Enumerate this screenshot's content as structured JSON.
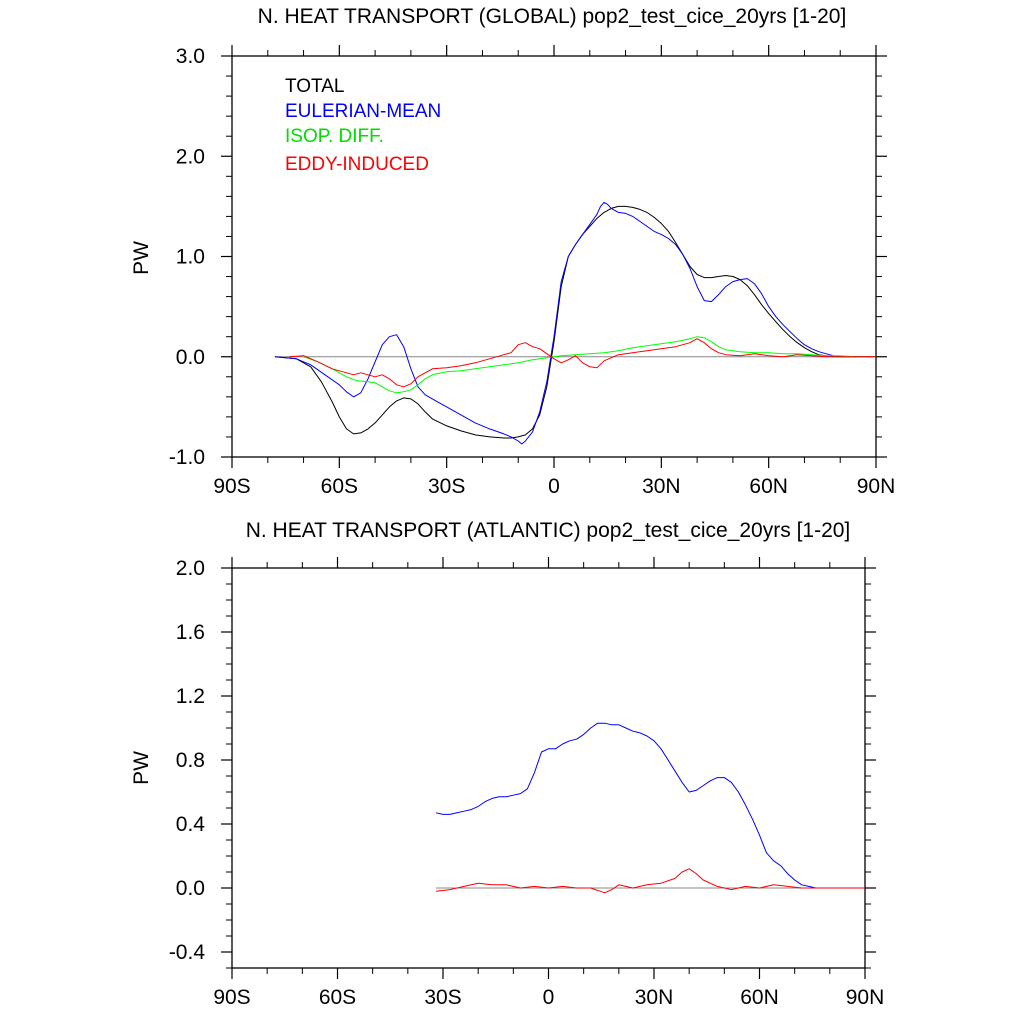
{
  "chart_data": [
    {
      "type": "line",
      "title": "N. HEAT TRANSPORT (GLOBAL) pop2_test_cice_20yrs [1-20]",
      "xlabel": "",
      "ylabel": "PW",
      "xlim": [
        -90,
        90
      ],
      "ylim": [
        -1.0,
        3.0
      ],
      "xticks": [
        -90,
        -60,
        -30,
        0,
        30,
        60,
        90
      ],
      "xtick_labels": [
        "90S",
        "60S",
        "30S",
        "0",
        "30N",
        "60N",
        "90N"
      ],
      "yticks": [
        -1.0,
        0.0,
        1.0,
        2.0,
        3.0
      ],
      "ytick_labels": [
        "-1.0",
        "0.0",
        "1.0",
        "2.0",
        "3.0"
      ],
      "legend": [
        "TOTAL",
        "EULERIAN-MEAN",
        "ISOP. DIFF.",
        "EDDY-INDUCED"
      ],
      "series": [
        {
          "name": "TOTAL",
          "color": "#000000",
          "x": [
            -78,
            -72,
            -68,
            -65,
            -62,
            -60,
            -58,
            -56,
            -54,
            -52,
            -50,
            -48,
            -46,
            -44,
            -42,
            -40,
            -38,
            -36,
            -34,
            -30,
            -26,
            -22,
            -18,
            -14,
            -12,
            -10,
            -8,
            -6,
            -4,
            -2,
            0,
            2,
            4,
            6,
            8,
            10,
            12,
            14,
            16,
            18,
            20,
            22,
            24,
            26,
            28,
            30,
            32,
            34,
            36,
            38,
            40,
            42,
            44,
            46,
            48,
            50,
            52,
            54,
            56,
            58,
            60,
            62,
            64,
            66,
            68,
            70,
            72,
            74,
            76,
            78,
            80,
            82,
            86,
            90
          ],
          "y": [
            0.0,
            -0.02,
            -0.1,
            -0.25,
            -0.45,
            -0.6,
            -0.72,
            -0.77,
            -0.76,
            -0.72,
            -0.66,
            -0.58,
            -0.5,
            -0.44,
            -0.41,
            -0.42,
            -0.47,
            -0.55,
            -0.62,
            -0.69,
            -0.74,
            -0.78,
            -0.8,
            -0.81,
            -0.81,
            -0.8,
            -0.78,
            -0.72,
            -0.58,
            -0.3,
            0.15,
            0.7,
            1.0,
            1.12,
            1.22,
            1.3,
            1.38,
            1.44,
            1.48,
            1.5,
            1.5,
            1.49,
            1.47,
            1.44,
            1.39,
            1.33,
            1.25,
            1.14,
            1.02,
            0.9,
            0.82,
            0.79,
            0.79,
            0.8,
            0.81,
            0.8,
            0.77,
            0.71,
            0.62,
            0.52,
            0.43,
            0.35,
            0.27,
            0.2,
            0.14,
            0.09,
            0.05,
            0.02,
            0.01,
            0.0,
            0.0,
            0.0,
            0.0,
            0.0
          ]
        },
        {
          "name": "EULERIAN-MEAN",
          "color": "#0000ff",
          "x": [
            -78,
            -72,
            -68,
            -64,
            -60,
            -58,
            -56,
            -54,
            -52,
            -50,
            -48,
            -46,
            -44,
            -42,
            -40,
            -38,
            -36,
            -34,
            -32,
            -30,
            -26,
            -22,
            -18,
            -14,
            -12,
            -10,
            -9,
            -8,
            -6,
            -4,
            -2,
            0,
            2,
            4,
            6,
            8,
            10,
            12,
            13,
            14,
            15,
            16,
            18,
            20,
            22,
            24,
            26,
            28,
            30,
            32,
            34,
            36,
            38,
            40,
            42,
            44,
            46,
            48,
            50,
            52,
            54,
            56,
            58,
            60,
            62,
            64,
            66,
            68,
            70,
            72,
            74,
            76,
            78,
            80,
            82,
            86,
            90
          ],
          "y": [
            0.0,
            -0.02,
            -0.08,
            -0.18,
            -0.28,
            -0.35,
            -0.4,
            -0.36,
            -0.22,
            -0.05,
            0.12,
            0.2,
            0.22,
            0.1,
            -0.12,
            -0.3,
            -0.38,
            -0.42,
            -0.46,
            -0.5,
            -0.58,
            -0.66,
            -0.72,
            -0.77,
            -0.8,
            -0.84,
            -0.87,
            -0.84,
            -0.75,
            -0.55,
            -0.25,
            0.2,
            0.75,
            1.0,
            1.12,
            1.22,
            1.32,
            1.42,
            1.5,
            1.54,
            1.52,
            1.48,
            1.44,
            1.43,
            1.4,
            1.35,
            1.3,
            1.25,
            1.22,
            1.18,
            1.12,
            1.02,
            0.88,
            0.7,
            0.56,
            0.55,
            0.62,
            0.7,
            0.75,
            0.77,
            0.78,
            0.73,
            0.63,
            0.5,
            0.4,
            0.32,
            0.25,
            0.18,
            0.12,
            0.08,
            0.05,
            0.03,
            0.01,
            0.0,
            0.0,
            0.0,
            0.0
          ]
        },
        {
          "name": "ISOP. DIFF.",
          "color": "#00ff00",
          "x": [
            -70,
            -66,
            -62,
            -58,
            -55,
            -52,
            -50,
            -48,
            -46,
            -44,
            -42,
            -40,
            -38,
            -36,
            -34,
            -30,
            -26,
            -22,
            -18,
            -14,
            -10,
            -6,
            -2,
            0,
            2,
            6,
            10,
            14,
            18,
            22,
            26,
            30,
            34,
            38,
            40,
            42,
            44,
            46,
            48,
            52,
            56,
            60,
            64,
            68,
            72,
            76,
            80,
            84,
            90
          ],
          "y": [
            0.0,
            -0.05,
            -0.12,
            -0.2,
            -0.24,
            -0.25,
            -0.26,
            -0.3,
            -0.34,
            -0.36,
            -0.35,
            -0.33,
            -0.28,
            -0.22,
            -0.18,
            -0.15,
            -0.14,
            -0.12,
            -0.1,
            -0.08,
            -0.06,
            -0.03,
            -0.01,
            0.0,
            0.01,
            0.02,
            0.03,
            0.04,
            0.06,
            0.09,
            0.11,
            0.13,
            0.15,
            0.18,
            0.2,
            0.19,
            0.15,
            0.1,
            0.07,
            0.05,
            0.04,
            0.04,
            0.03,
            0.03,
            0.02,
            0.01,
            0.01,
            0.0,
            0.0
          ]
        },
        {
          "name": "EDDY-INDUCED",
          "color": "#ff0000",
          "x": [
            -74,
            -70,
            -66,
            -62,
            -58,
            -56,
            -54,
            -52,
            -50,
            -48,
            -46,
            -44,
            -42,
            -40,
            -38,
            -36,
            -34,
            -30,
            -26,
            -22,
            -18,
            -14,
            -12,
            -10,
            -8,
            -6,
            -4,
            -2,
            0,
            2,
            4,
            6,
            8,
            10,
            12,
            14,
            18,
            22,
            26,
            30,
            34,
            38,
            40,
            42,
            44,
            46,
            48,
            52,
            56,
            60,
            64,
            68,
            72,
            76,
            80,
            84,
            90
          ],
          "y": [
            0.0,
            0.01,
            -0.05,
            -0.12,
            -0.16,
            -0.18,
            -0.16,
            -0.18,
            -0.2,
            -0.18,
            -0.22,
            -0.28,
            -0.3,
            -0.27,
            -0.2,
            -0.16,
            -0.12,
            -0.11,
            -0.09,
            -0.06,
            -0.02,
            0.02,
            0.04,
            0.12,
            0.14,
            0.1,
            0.08,
            0.03,
            -0.02,
            -0.06,
            -0.03,
            0.01,
            -0.06,
            -0.1,
            -0.11,
            -0.04,
            0.02,
            0.04,
            0.06,
            0.08,
            0.1,
            0.14,
            0.18,
            0.14,
            0.08,
            0.04,
            0.02,
            0.01,
            0.03,
            0.01,
            0.0,
            0.02,
            0.01,
            0.0,
            0.0,
            0.0,
            0.0
          ]
        }
      ]
    },
    {
      "type": "line",
      "title": "N. HEAT TRANSPORT (ATLANTIC) pop2_test_cice_20yrs [1-20]",
      "xlabel": "",
      "ylabel": "PW",
      "xlim": [
        -90,
        90
      ],
      "ylim": [
        -0.5,
        2.0
      ],
      "xticks": [
        -90,
        -60,
        -30,
        0,
        30,
        60,
        90
      ],
      "xtick_labels": [
        "90S",
        "60S",
        "30S",
        "0",
        "30N",
        "60N",
        "90N"
      ],
      "yticks": [
        -0.4,
        0.0,
        0.4,
        0.8,
        1.2,
        1.6,
        2.0
      ],
      "ytick_labels": [
        "-0.4",
        "0.0",
        "0.4",
        "0.8",
        "1.2",
        "1.6",
        "2.0"
      ],
      "series": [
        {
          "name": "EULERIAN-MEAN",
          "color": "#0000ff",
          "x": [
            -32,
            -30,
            -28,
            -26,
            -24,
            -22,
            -20,
            -18,
            -16,
            -14,
            -12,
            -10,
            -8,
            -6,
            -4,
            -2,
            0,
            2,
            4,
            6,
            8,
            10,
            12,
            14,
            16,
            18,
            20,
            22,
            24,
            26,
            28,
            30,
            32,
            34,
            36,
            38,
            40,
            42,
            44,
            46,
            48,
            50,
            52,
            54,
            56,
            58,
            60,
            62,
            64,
            66,
            68,
            70,
            72,
            74,
            76,
            78,
            80,
            84,
            90
          ],
          "y": [
            0.47,
            0.46,
            0.46,
            0.47,
            0.48,
            0.49,
            0.51,
            0.54,
            0.56,
            0.57,
            0.57,
            0.58,
            0.59,
            0.62,
            0.72,
            0.85,
            0.87,
            0.87,
            0.9,
            0.92,
            0.93,
            0.96,
            1.0,
            1.03,
            1.03,
            1.02,
            1.02,
            1.0,
            0.98,
            0.97,
            0.95,
            0.92,
            0.87,
            0.8,
            0.73,
            0.66,
            0.6,
            0.61,
            0.64,
            0.67,
            0.69,
            0.69,
            0.66,
            0.6,
            0.52,
            0.43,
            0.33,
            0.22,
            0.17,
            0.14,
            0.09,
            0.05,
            0.02,
            0.01,
            0.0,
            0.0,
            0.0,
            0.0,
            0.0
          ]
        },
        {
          "name": "EDDY-INDUCED",
          "color": "#ff0000",
          "x": [
            -32,
            -28,
            -24,
            -20,
            -16,
            -12,
            -8,
            -4,
            0,
            4,
            8,
            12,
            16,
            18,
            20,
            24,
            28,
            32,
            36,
            38,
            40,
            42,
            44,
            48,
            52,
            56,
            60,
            64,
            68,
            72,
            76,
            80,
            84,
            90
          ],
          "y": [
            -0.02,
            -0.01,
            0.01,
            0.03,
            0.02,
            0.02,
            0.0,
            0.01,
            0.0,
            0.01,
            0.0,
            0.0,
            -0.03,
            -0.01,
            0.02,
            0.0,
            0.02,
            0.03,
            0.06,
            0.1,
            0.12,
            0.09,
            0.05,
            0.01,
            -0.01,
            0.01,
            0.0,
            0.02,
            0.01,
            0.0,
            0.0,
            0.0,
            0.0,
            0.0
          ]
        }
      ]
    }
  ]
}
